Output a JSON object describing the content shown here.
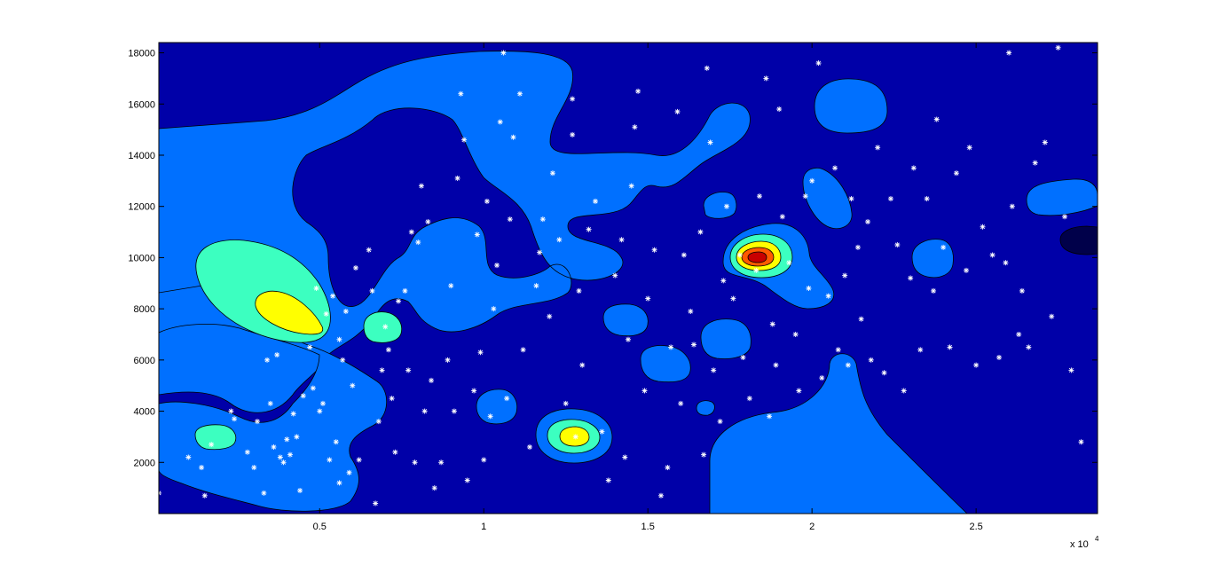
{
  "chart_data": {
    "type": "filled-contour",
    "title": "",
    "xlabel": "",
    "ylabel": "",
    "xlim": [
      100,
      28700
    ],
    "ylim": [
      0,
      18400
    ],
    "x_multiplier_label": "x 10",
    "x_multiplier_exponent": "4",
    "xticks": [
      {
        "value": 5000,
        "label": "0.5"
      },
      {
        "value": 10000,
        "label": "1"
      },
      {
        "value": 15000,
        "label": "1.5"
      },
      {
        "value": 20000,
        "label": "2"
      },
      {
        "value": 25000,
        "label": "2.5"
      }
    ],
    "yticks": [
      {
        "value": 2000,
        "label": "2000"
      },
      {
        "value": 4000,
        "label": "4000"
      },
      {
        "value": 6000,
        "label": "6000"
      },
      {
        "value": 8000,
        "label": "8000"
      },
      {
        "value": 10000,
        "label": "10000"
      },
      {
        "value": 12000,
        "label": "12000"
      },
      {
        "value": 14000,
        "label": "14000"
      },
      {
        "value": 16000,
        "label": "16000"
      },
      {
        "value": 18000,
        "label": "18000"
      }
    ],
    "contour_colors": {
      "level0": "#0000A8",
      "level1": "#0A0AB4",
      "level2": "#0070FF",
      "level3": "#3CFFC0",
      "level4": "#FFFF00",
      "level5": "#FF5A00",
      "level6": "#C80000",
      "deep": "#00004A"
    },
    "peaks": [
      {
        "x": 3900,
        "y": 8100,
        "level": 4
      },
      {
        "x": 12750,
        "y": 3000,
        "level": 4
      },
      {
        "x": 18200,
        "y": 10050,
        "level": 6
      },
      {
        "x": 28200,
        "y": 10700,
        "level": 0
      }
    ],
    "marker": {
      "symbol": "*",
      "color": "#ffffff"
    },
    "points": [
      [
        100,
        800
      ],
      [
        1000,
        2200
      ],
      [
        1400,
        1800
      ],
      [
        1500,
        700
      ],
      [
        1700,
        2700
      ],
      [
        2300,
        4000
      ],
      [
        2400,
        3700
      ],
      [
        2800,
        2400
      ],
      [
        3000,
        1800
      ],
      [
        3100,
        3600
      ],
      [
        3300,
        800
      ],
      [
        3400,
        6000
      ],
      [
        3500,
        4300
      ],
      [
        3600,
        2600
      ],
      [
        3700,
        6200
      ],
      [
        3800,
        2200
      ],
      [
        3900,
        2000
      ],
      [
        4000,
        2900
      ],
      [
        4100,
        2300
      ],
      [
        4200,
        3900
      ],
      [
        4300,
        3000
      ],
      [
        4400,
        900
      ],
      [
        4500,
        4600
      ],
      [
        4700,
        6500
      ],
      [
        4800,
        4900
      ],
      [
        4900,
        8800
      ],
      [
        5000,
        4000
      ],
      [
        5100,
        4300
      ],
      [
        5200,
        7800
      ],
      [
        5300,
        2100
      ],
      [
        5400,
        8500
      ],
      [
        5500,
        2800
      ],
      [
        5600,
        1200
      ],
      [
        5600,
        6800
      ],
      [
        5700,
        6000
      ],
      [
        5800,
        7900
      ],
      [
        5900,
        1600
      ],
      [
        6000,
        5000
      ],
      [
        6100,
        9600
      ],
      [
        6200,
        2100
      ],
      [
        6500,
        10300
      ],
      [
        6600,
        8700
      ],
      [
        6700,
        400
      ],
      [
        6800,
        3600
      ],
      [
        6900,
        5600
      ],
      [
        7000,
        7300
      ],
      [
        7100,
        6400
      ],
      [
        7200,
        4500
      ],
      [
        7300,
        2400
      ],
      [
        7400,
        8300
      ],
      [
        7600,
        8700
      ],
      [
        7700,
        5600
      ],
      [
        7800,
        11000
      ],
      [
        7900,
        2000
      ],
      [
        8000,
        10600
      ],
      [
        8100,
        12800
      ],
      [
        8200,
        4000
      ],
      [
        8300,
        11400
      ],
      [
        8400,
        5200
      ],
      [
        8500,
        1000
      ],
      [
        8700,
        2000
      ],
      [
        8900,
        6000
      ],
      [
        9000,
        8900
      ],
      [
        9100,
        4000
      ],
      [
        9200,
        13100
      ],
      [
        9300,
        16400
      ],
      [
        9400,
        14600
      ],
      [
        9500,
        1300
      ],
      [
        9700,
        4800
      ],
      [
        9800,
        10900
      ],
      [
        9900,
        6300
      ],
      [
        10000,
        2100
      ],
      [
        10100,
        12200
      ],
      [
        10200,
        3800
      ],
      [
        10300,
        8000
      ],
      [
        10400,
        9700
      ],
      [
        10500,
        15300
      ],
      [
        10600,
        18000
      ],
      [
        10700,
        4500
      ],
      [
        10800,
        11500
      ],
      [
        10900,
        14700
      ],
      [
        11100,
        16400
      ],
      [
        11200,
        6400
      ],
      [
        11400,
        2600
      ],
      [
        11600,
        8900
      ],
      [
        11700,
        10200
      ],
      [
        11800,
        11500
      ],
      [
        12000,
        7700
      ],
      [
        12100,
        13300
      ],
      [
        12300,
        10700
      ],
      [
        12500,
        4300
      ],
      [
        12700,
        16200
      ],
      [
        12700,
        14800
      ],
      [
        12800,
        3000
      ],
      [
        12900,
        8700
      ],
      [
        13000,
        5800
      ],
      [
        13200,
        11100
      ],
      [
        13400,
        12200
      ],
      [
        13600,
        3200
      ],
      [
        13800,
        1300
      ],
      [
        14000,
        9300
      ],
      [
        14200,
        10700
      ],
      [
        14300,
        2200
      ],
      [
        14400,
        6800
      ],
      [
        14500,
        12800
      ],
      [
        14600,
        15100
      ],
      [
        14700,
        16500
      ],
      [
        14900,
        4800
      ],
      [
        15000,
        8400
      ],
      [
        15200,
        10300
      ],
      [
        15400,
        700
      ],
      [
        15600,
        1800
      ],
      [
        15700,
        6500
      ],
      [
        15900,
        15700
      ],
      [
        16000,
        4300
      ],
      [
        16100,
        10100
      ],
      [
        16300,
        7900
      ],
      [
        16400,
        6600
      ],
      [
        16600,
        11000
      ],
      [
        16700,
        2300
      ],
      [
        16800,
        17400
      ],
      [
        16900,
        14500
      ],
      [
        17000,
        5600
      ],
      [
        17200,
        3600
      ],
      [
        17300,
        9100
      ],
      [
        17400,
        12000
      ],
      [
        17600,
        8400
      ],
      [
        17800,
        10100
      ],
      [
        17900,
        6100
      ],
      [
        18100,
        4500
      ],
      [
        18300,
        9500
      ],
      [
        18400,
        12400
      ],
      [
        18600,
        17000
      ],
      [
        18700,
        3800
      ],
      [
        18800,
        7400
      ],
      [
        18900,
        5800
      ],
      [
        19000,
        15800
      ],
      [
        19100,
        11600
      ],
      [
        19300,
        9800
      ],
      [
        19500,
        7000
      ],
      [
        19600,
        4800
      ],
      [
        19800,
        12400
      ],
      [
        19900,
        8800
      ],
      [
        20000,
        13000
      ],
      [
        20200,
        17600
      ],
      [
        20300,
        5300
      ],
      [
        20500,
        8500
      ],
      [
        20700,
        13500
      ],
      [
        20800,
        6400
      ],
      [
        21000,
        9300
      ],
      [
        21100,
        5800
      ],
      [
        21200,
        12300
      ],
      [
        21400,
        10400
      ],
      [
        21500,
        7600
      ],
      [
        21700,
        11400
      ],
      [
        21800,
        6000
      ],
      [
        22000,
        14300
      ],
      [
        22200,
        5500
      ],
      [
        22400,
        12300
      ],
      [
        22600,
        10500
      ],
      [
        22800,
        4800
      ],
      [
        23000,
        9200
      ],
      [
        23100,
        13500
      ],
      [
        23300,
        6400
      ],
      [
        23500,
        12300
      ],
      [
        23700,
        8700
      ],
      [
        23800,
        15400
      ],
      [
        24000,
        10400
      ],
      [
        24200,
        6500
      ],
      [
        24400,
        13300
      ],
      [
        24700,
        9500
      ],
      [
        24800,
        14300
      ],
      [
        25000,
        5800
      ],
      [
        25200,
        11200
      ],
      [
        25500,
        10100
      ],
      [
        25700,
        6100
      ],
      [
        25900,
        9800
      ],
      [
        26000,
        18000
      ],
      [
        26100,
        12000
      ],
      [
        26300,
        7000
      ],
      [
        26400,
        8700
      ],
      [
        26600,
        6500
      ],
      [
        26800,
        13700
      ],
      [
        27100,
        14500
      ],
      [
        27300,
        7700
      ],
      [
        27500,
        18200
      ],
      [
        27700,
        11600
      ],
      [
        27900,
        5600
      ],
      [
        28200,
        2800
      ]
    ]
  }
}
